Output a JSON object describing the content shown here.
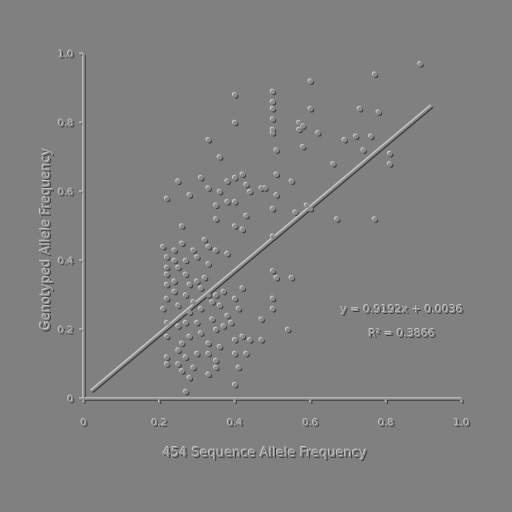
{
  "chart_data": {
    "type": "scatter",
    "title": "",
    "xlabel": "454 Sequence Allele Frequency",
    "ylabel": "Genotyped Allele Frequency",
    "xlim": [
      0,
      1.0
    ],
    "ylim": [
      0,
      1.0
    ],
    "xticks": [
      "0",
      "0.2",
      "0.4",
      "0.6",
      "0.8",
      "1.0"
    ],
    "yticks": [
      "0",
      "0.2",
      "0.4",
      "0.6",
      "0.8",
      "1.0"
    ],
    "grid": false,
    "legend": "none",
    "trendline": {
      "slope": 0.9192,
      "intercept": 0.0036
    },
    "annotations": {
      "equation": "y = 0.9192x + 0.0036",
      "r2": "R² = 0.3866"
    },
    "points": [
      [
        0.89,
        0.97
      ],
      [
        0.77,
        0.94
      ],
      [
        0.6,
        0.92
      ],
      [
        0.4,
        0.88
      ],
      [
        0.5,
        0.89
      ],
      [
        0.5,
        0.86
      ],
      [
        0.5,
        0.84
      ],
      [
        0.73,
        0.84
      ],
      [
        0.6,
        0.84
      ],
      [
        0.78,
        0.83
      ],
      [
        0.5,
        0.81
      ],
      [
        0.4,
        0.8
      ],
      [
        0.57,
        0.8
      ],
      [
        0.58,
        0.79
      ],
      [
        0.5,
        0.78
      ],
      [
        0.57,
        0.78
      ],
      [
        0.5,
        0.77
      ],
      [
        0.62,
        0.77
      ],
      [
        0.72,
        0.76
      ],
      [
        0.76,
        0.76
      ],
      [
        0.69,
        0.75
      ],
      [
        0.33,
        0.75
      ],
      [
        0.58,
        0.73
      ],
      [
        0.51,
        0.72
      ],
      [
        0.74,
        0.72
      ],
      [
        0.81,
        0.71
      ],
      [
        0.36,
        0.7
      ],
      [
        0.66,
        0.68
      ],
      [
        0.81,
        0.68
      ],
      [
        0.51,
        0.65
      ],
      [
        0.42,
        0.65
      ],
      [
        0.4,
        0.64
      ],
      [
        0.31,
        0.64
      ],
      [
        0.25,
        0.63
      ],
      [
        0.38,
        0.63
      ],
      [
        0.43,
        0.62
      ],
      [
        0.47,
        0.61
      ],
      [
        0.33,
        0.61
      ],
      [
        0.48,
        0.61
      ],
      [
        0.55,
        0.63
      ],
      [
        0.36,
        0.6
      ],
      [
        0.44,
        0.6
      ],
      [
        0.51,
        0.59
      ],
      [
        0.22,
        0.58
      ],
      [
        0.28,
        0.59
      ],
      [
        0.38,
        0.57
      ],
      [
        0.4,
        0.57
      ],
      [
        0.35,
        0.56
      ],
      [
        0.5,
        0.55
      ],
      [
        0.56,
        0.54
      ],
      [
        0.6,
        0.55
      ],
      [
        0.59,
        0.56
      ],
      [
        0.43,
        0.53
      ],
      [
        0.35,
        0.52
      ],
      [
        0.67,
        0.52
      ],
      [
        0.77,
        0.52
      ],
      [
        0.4,
        0.5
      ],
      [
        0.26,
        0.5
      ],
      [
        0.42,
        0.49
      ],
      [
        0.5,
        0.47
      ],
      [
        0.32,
        0.46
      ],
      [
        0.26,
        0.45
      ],
      [
        0.33,
        0.44
      ],
      [
        0.35,
        0.43
      ],
      [
        0.21,
        0.44
      ],
      [
        0.29,
        0.43
      ],
      [
        0.24,
        0.43
      ],
      [
        0.22,
        0.41
      ],
      [
        0.38,
        0.42
      ],
      [
        0.3,
        0.41
      ],
      [
        0.27,
        0.4
      ],
      [
        0.24,
        0.4
      ],
      [
        0.33,
        0.39
      ],
      [
        0.25,
        0.38
      ],
      [
        0.22,
        0.38
      ],
      [
        0.5,
        0.37
      ],
      [
        0.22,
        0.36
      ],
      [
        0.27,
        0.36
      ],
      [
        0.51,
        0.35
      ],
      [
        0.55,
        0.35
      ],
      [
        0.32,
        0.35
      ],
      [
        0.24,
        0.34
      ],
      [
        0.28,
        0.33
      ],
      [
        0.3,
        0.34
      ],
      [
        0.22,
        0.33
      ],
      [
        0.31,
        0.32
      ],
      [
        0.42,
        0.32
      ],
      [
        0.37,
        0.31
      ],
      [
        0.24,
        0.31
      ],
      [
        0.27,
        0.3
      ],
      [
        0.33,
        0.3
      ],
      [
        0.35,
        0.3
      ],
      [
        0.4,
        0.29
      ],
      [
        0.5,
        0.29
      ],
      [
        0.22,
        0.29
      ],
      [
        0.29,
        0.28
      ],
      [
        0.34,
        0.28
      ],
      [
        0.36,
        0.27
      ],
      [
        0.25,
        0.27
      ],
      [
        0.41,
        0.26
      ],
      [
        0.5,
        0.26
      ],
      [
        0.31,
        0.26
      ],
      [
        0.21,
        0.26
      ],
      [
        0.28,
        0.25
      ],
      [
        0.38,
        0.24
      ],
      [
        0.34,
        0.23
      ],
      [
        0.47,
        0.23
      ],
      [
        0.22,
        0.22
      ],
      [
        0.27,
        0.22
      ],
      [
        0.3,
        0.22
      ],
      [
        0.39,
        0.22
      ],
      [
        0.25,
        0.21
      ],
      [
        0.35,
        0.2
      ],
      [
        0.37,
        0.21
      ],
      [
        0.54,
        0.2
      ],
      [
        0.31,
        0.19
      ],
      [
        0.42,
        0.18
      ],
      [
        0.22,
        0.18
      ],
      [
        0.28,
        0.18
      ],
      [
        0.4,
        0.17
      ],
      [
        0.44,
        0.17
      ],
      [
        0.47,
        0.17
      ],
      [
        0.26,
        0.16
      ],
      [
        0.33,
        0.16
      ],
      [
        0.36,
        0.15
      ],
      [
        0.25,
        0.14
      ],
      [
        0.3,
        0.13
      ],
      [
        0.4,
        0.13
      ],
      [
        0.43,
        0.13
      ],
      [
        0.22,
        0.12
      ],
      [
        0.33,
        0.13
      ],
      [
        0.27,
        0.12
      ],
      [
        0.35,
        0.11
      ],
      [
        0.22,
        0.1
      ],
      [
        0.25,
        0.1
      ],
      [
        0.29,
        0.09
      ],
      [
        0.35,
        0.09
      ],
      [
        0.41,
        0.09
      ],
      [
        0.26,
        0.08
      ],
      [
        0.33,
        0.07
      ],
      [
        0.28,
        0.06
      ],
      [
        0.4,
        0.04
      ],
      [
        0.27,
        0.02
      ]
    ]
  }
}
